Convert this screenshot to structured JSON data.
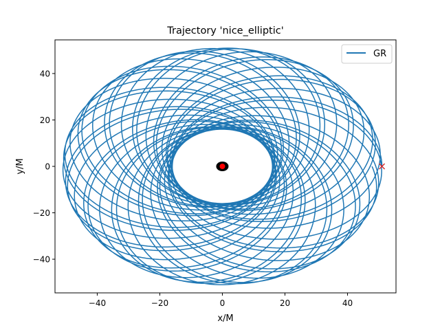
{
  "chart_data": {
    "type": "line",
    "title": "Trajectory 'nice_elliptic'",
    "xlabel": "x/M",
    "ylabel": "y/M",
    "xlim": [
      -53.5,
      55.5
    ],
    "ylim": [
      -54.5,
      54.5
    ],
    "xticks": [
      -40,
      -20,
      0,
      20,
      40
    ],
    "yticks": [
      -40,
      -20,
      0,
      20,
      40
    ],
    "xtick_labels": [
      "−40",
      "−20",
      "0",
      "20",
      "40"
    ],
    "ytick_labels": [
      "−40",
      "−20",
      "0",
      "20",
      "40"
    ],
    "grid": false,
    "legend": {
      "placement": "top-right",
      "entries": [
        "GR"
      ]
    },
    "series": [
      {
        "name": "GR",
        "color": "#1f77b4",
        "kind": "precessing-elliptic-orbit",
        "start_point": [
          51,
          0
        ],
        "apoapsis_r": 51,
        "periapsis_r": 16,
        "precession_deg_per_orbit": 26.5,
        "orbits": 40
      }
    ],
    "markers": [
      {
        "name": "start",
        "x": 51,
        "y": 0,
        "symbol": "x",
        "color": "#d62728"
      },
      {
        "name": "black-hole",
        "x": 0,
        "y": 0,
        "symbol": "disc",
        "color": "#000000"
      },
      {
        "name": "center",
        "x": 0,
        "y": 0,
        "symbol": "dot",
        "color": "#ff0000"
      }
    ]
  }
}
